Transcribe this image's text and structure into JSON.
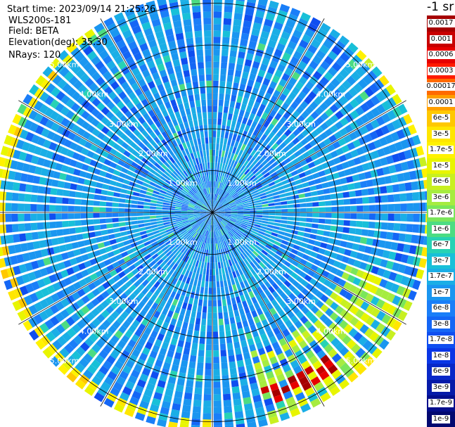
{
  "info": {
    "start_time": "Start time: 2023/09/14 21:25:26",
    "site": "WLS200s-181",
    "field": "Field: BETA",
    "elevation": "Elevation(deg): 35.30",
    "nrays": "NRays: 120"
  },
  "chart_data": {
    "type": "heatmap",
    "projection": "polar PPI",
    "range_rings_km": [
      1.0,
      2.0,
      3.0,
      4.0,
      5.0
    ],
    "range_labels": [
      "1.00km",
      "2.00km",
      "3.00km",
      "4.00km",
      "5.00km"
    ],
    "radial_spokes_deg": [
      0,
      30,
      60,
      90,
      120,
      150,
      180,
      210,
      240,
      270,
      300,
      330
    ],
    "nrays": 120,
    "colorbar": {
      "unit": "-1 sr",
      "ticks": [
        "0.0017",
        "0.001",
        "0.0006",
        "0.0003",
        "0.00017",
        "0.0001",
        "6e-5",
        "3e-5",
        "1.7e-5",
        "1e-5",
        "6e-6",
        "3e-6",
        "1.7e-6",
        "1e-6",
        "6e-7",
        "3e-7",
        "1.7e-7",
        "1e-7",
        "6e-8",
        "3e-8",
        "1.7e-8",
        "1e-8",
        "6e-9",
        "3e-9",
        "1.7e-9",
        "1e-9"
      ],
      "colors": [
        "#a60000",
        "#c80000",
        "#e60000",
        "#ff1a00",
        "#ff6a00",
        "#ff9e00",
        "#ffc800",
        "#ffe600",
        "#fff200",
        "#e8f500",
        "#c8f020",
        "#a6ec40",
        "#7ae65a",
        "#4cdc82",
        "#27d2b4",
        "#18c0d8",
        "#1aaee6",
        "#1a96f0",
        "#1a7ef8",
        "#1466f5",
        "#0f4ef0",
        "#0a36e6",
        "#0828c8",
        "#061aa8",
        "#040e8c",
        "#020870"
      ]
    },
    "hot_sectors": [
      {
        "az_from": 110,
        "az_to": 165,
        "r_from_km": 3.5,
        "r_to_km": 5.2,
        "level": "1e-5"
      },
      {
        "az_from": 140,
        "az_to": 165,
        "r_from_km": 4.3,
        "r_to_km": 4.8,
        "level": "1e-4"
      },
      {
        "az_from": 40,
        "az_to": 140,
        "r_from_km": 5.1,
        "r_to_km": 5.25,
        "level": "3e-5"
      },
      {
        "az_from": 180,
        "az_to": 330,
        "r_from_km": 5.0,
        "r_to_km": 5.25,
        "level": "6e-5"
      }
    ]
  }
}
